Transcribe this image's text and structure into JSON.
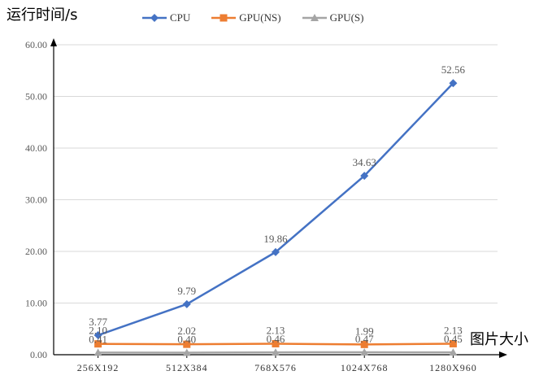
{
  "chart_data": {
    "type": "line",
    "xlabel": "图片大小",
    "ylabel": "运行时间/s",
    "categories": [
      "256X192",
      "512X384",
      "768X576",
      "1024X768",
      "1280X960"
    ],
    "ylim": [
      0,
      60
    ],
    "yticks": [
      "0.00",
      "10.00",
      "20.00",
      "30.00",
      "40.00",
      "50.00",
      "60.00"
    ],
    "grid": true,
    "legend_position": "top",
    "series": [
      {
        "name": "CPU",
        "values": [
          3.77,
          9.79,
          19.86,
          34.63,
          52.56
        ],
        "labels": [
          "3.77",
          "9.79",
          "19.86",
          "34.63",
          "52.56"
        ],
        "color": "#4472C4",
        "marker": "diamond"
      },
      {
        "name": "GPU(NS)",
        "values": [
          2.1,
          2.02,
          2.13,
          1.99,
          2.13
        ],
        "labels": [
          "2.10",
          "2.02",
          "2.13",
          "1.99",
          "2.13"
        ],
        "color": "#ED7D31",
        "marker": "square"
      },
      {
        "name": "GPU(S)",
        "values": [
          0.41,
          0.4,
          0.46,
          0.47,
          0.45
        ],
        "labels": [
          "0.41",
          "0.40",
          "0.46",
          "0.47",
          "0.45"
        ],
        "color": "#A5A5A5",
        "marker": "triangle"
      }
    ]
  }
}
